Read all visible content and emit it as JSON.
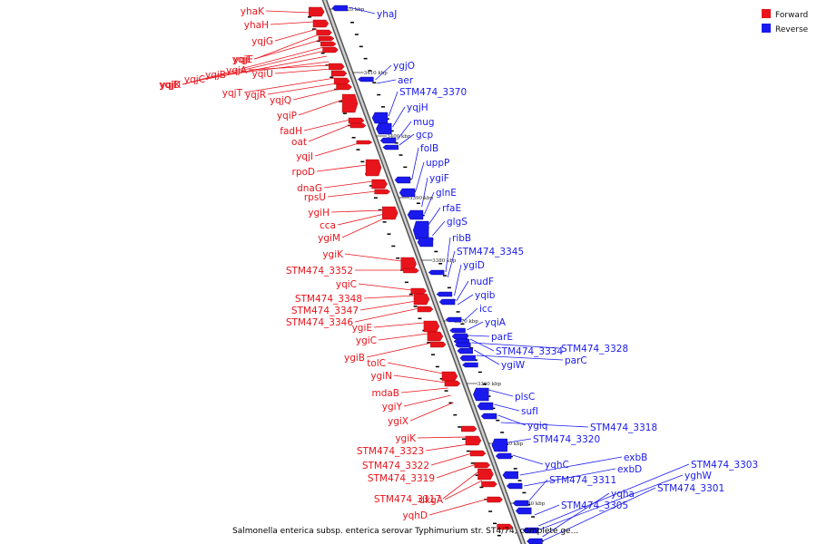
{
  "legend": {
    "forward_label": "Forward",
    "reverse_label": "Reverse",
    "forward_color": "#e8141c",
    "reverse_color": "#1a1aee"
  },
  "caption": "Salmonella enterica subsp. enterica serovar Typhimurium str. ST4/74, complete ge...",
  "ticks": [
    "3420 kbp",
    "3410 kbp",
    "3400 kbp",
    "3390 kbp",
    "3380 kbp",
    "3370 kbp",
    "3360 kbp",
    "3350 kbp",
    "3340 kbp"
  ],
  "forward_genes": [
    "yhaK",
    "yhaH",
    "yqjG",
    "yqjF",
    "yqjE",
    "yqjK",
    "yqjD",
    "yqjC",
    "yqjB",
    "yqjA",
    "yqiU",
    "yqjT",
    "yqjR",
    "yqjQ",
    "yqiP",
    "fadH",
    "oat",
    "yqjI",
    "rpoD",
    "dnaG",
    "rpsU",
    "ygiH",
    "cca",
    "ygiM",
    "ygiK",
    "STM474_3352",
    "yqiC",
    "STM474_3348",
    "STM474_3347",
    "STM474_3346",
    "ygiE",
    "ygiC",
    "ygiB",
    "tolC",
    "ygiN",
    "mdaB",
    "ygiY",
    "ygiX",
    "ygiK",
    "STM474_3323",
    "STM474_3322",
    "STM474_3319",
    "STM474_3317",
    "dkgA",
    "yqhD"
  ],
  "reverse_genes": [
    "yhaJ",
    "ygjO",
    "aer",
    "STM474_3370",
    "yqjH",
    "mug",
    "gcp",
    "folB",
    "uppP",
    "ygiF",
    "glnE",
    "rfaE",
    "glgS",
    "ribB",
    "STM474_3345",
    "ygiD",
    "nudF",
    "yqib",
    "icc",
    "yqiA",
    "parE",
    "STM474_3334",
    "STM474_3328",
    "ygiW",
    "parC",
    "plsC",
    "sufI",
    "ygiq",
    "STM474_3318",
    "STM474_3320",
    "yqhC",
    "exbB",
    "exbD",
    "STM474_3311",
    "STM474_3303",
    "yghW",
    "yqha",
    "STM474_3305",
    "STM474_3301"
  ]
}
